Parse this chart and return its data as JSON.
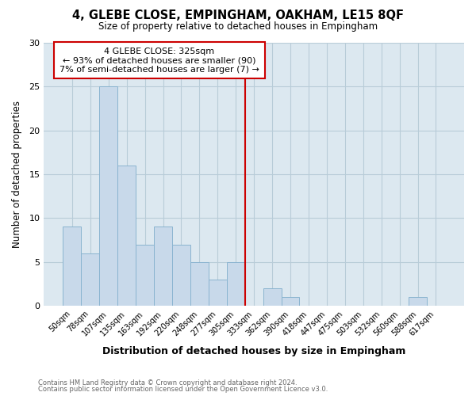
{
  "title": "4, GLEBE CLOSE, EMPINGHAM, OAKHAM, LE15 8QF",
  "subtitle": "Size of property relative to detached houses in Empingham",
  "xlabel": "Distribution of detached houses by size in Empingham",
  "ylabel": "Number of detached properties",
  "bar_color": "#c8d9ea",
  "bar_edge_color": "#8ab4d0",
  "annotation_box_color": "#cc0000",
  "vertical_line_color": "#cc0000",
  "bin_labels": [
    "50sqm",
    "78sqm",
    "107sqm",
    "135sqm",
    "163sqm",
    "192sqm",
    "220sqm",
    "248sqm",
    "277sqm",
    "305sqm",
    "333sqm",
    "362sqm",
    "390sqm",
    "418sqm",
    "447sqm",
    "475sqm",
    "503sqm",
    "532sqm",
    "560sqm",
    "588sqm",
    "617sqm"
  ],
  "bin_values": [
    9,
    6,
    25,
    16,
    7,
    9,
    7,
    5,
    3,
    5,
    0,
    2,
    1,
    0,
    0,
    0,
    0,
    0,
    0,
    1,
    0
  ],
  "vline_position": 9.5,
  "ylim": [
    0,
    30
  ],
  "yticks": [
    0,
    5,
    10,
    15,
    20,
    25,
    30
  ],
  "annotation_title": "4 GLEBE CLOSE: 325sqm",
  "annotation_line1": "← 93% of detached houses are smaller (90)",
  "annotation_line2": "7% of semi-detached houses are larger (7) →",
  "footer_line1": "Contains HM Land Registry data © Crown copyright and database right 2024.",
  "footer_line2": "Contains public sector information licensed under the Open Government Licence v3.0.",
  "bg_color": "#ffffff",
  "plot_bg_color": "#dce8f0",
  "grid_color": "#b8ccd8"
}
